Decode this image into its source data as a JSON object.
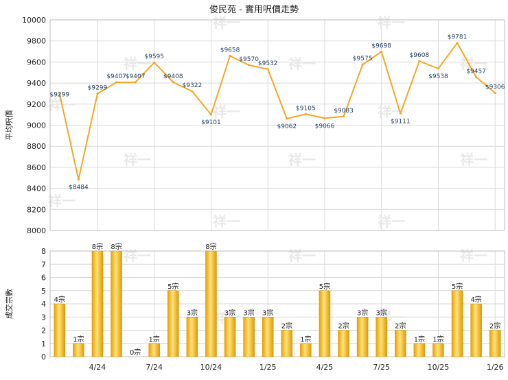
{
  "title": "俊民苑 - 實用呎價走勢",
  "watermark": "祥一",
  "colors": {
    "line": "#f5a623",
    "bar_light": "#ffe27a",
    "bar_dark": "#e8a000",
    "grid": "#d9d9d9"
  },
  "chart_data": [
    {
      "type": "line",
      "ylabel": "平均呎價",
      "ylim": [
        8000,
        10000
      ],
      "yticks": [
        8000,
        8200,
        8400,
        8600,
        8800,
        9000,
        9200,
        9400,
        9600,
        9800,
        10000
      ],
      "values": [
        9299,
        8484,
        9299,
        9407,
        9407,
        9595,
        9408,
        9322,
        9101,
        9658,
        9570,
        9532,
        9062,
        9105,
        9066,
        9083,
        9575,
        9698,
        9111,
        9608,
        9538,
        9781,
        9457,
        9306
      ],
      "point_labels": [
        "$9299",
        "$8484",
        "$9299",
        "$9407",
        "$9407",
        "$9595",
        "$9408",
        "$9322",
        "$9101",
        "$9658",
        "$9570",
        "$9532",
        "$9062",
        "$9105",
        "$9066",
        "$9083",
        "$9575",
        "$9698",
        "$9111",
        "$9608",
        "$9538",
        "$9781",
        "$9457",
        "$9306"
      ],
      "grid": true
    },
    {
      "type": "bar",
      "ylabel": "成交宗數",
      "ylim": [
        0,
        8
      ],
      "yticks": [
        0,
        1,
        2,
        3,
        4,
        5,
        6,
        7,
        8
      ],
      "values": [
        4,
        1,
        8,
        8,
        0,
        1,
        5,
        3,
        8,
        3,
        3,
        3,
        2,
        1,
        5,
        2,
        3,
        3,
        2,
        1,
        1,
        5,
        4,
        2
      ],
      "bar_labels": [
        "4宗",
        "1宗",
        "8宗",
        "8宗",
        "0宗",
        "1宗",
        "5宗",
        "3宗",
        "8宗",
        "3宗",
        "3宗",
        "3宗",
        "2宗",
        "1宗",
        "5宗",
        "2宗",
        "3宗",
        "3宗",
        "2宗",
        "1宗",
        "1宗",
        "5宗",
        "4宗",
        "2宗"
      ],
      "xtick_labels": [
        {
          "index": 2,
          "label": "4/24"
        },
        {
          "index": 5,
          "label": "7/24"
        },
        {
          "index": 8,
          "label": "10/24"
        },
        {
          "index": 11,
          "label": "1/25"
        },
        {
          "index": 14,
          "label": "4/25"
        },
        {
          "index": 17,
          "label": "7/25"
        },
        {
          "index": 20,
          "label": "10/25"
        },
        {
          "index": 23,
          "label": "1/26"
        }
      ],
      "grid": true
    }
  ]
}
